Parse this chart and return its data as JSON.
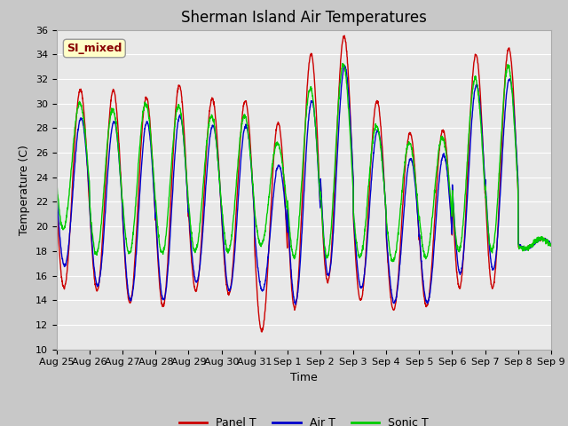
{
  "title": "Sherman Island Air Temperatures",
  "xlabel": "Time",
  "ylabel": "Temperature (C)",
  "ylim": [
    10,
    36
  ],
  "yticks": [
    10,
    12,
    14,
    16,
    18,
    20,
    22,
    24,
    26,
    28,
    30,
    32,
    34,
    36
  ],
  "xtick_labels": [
    "Aug 25",
    "Aug 26",
    "Aug 27",
    "Aug 28",
    "Aug 29",
    "Aug 30",
    "Aug 31",
    "Sep 1",
    "Sep 2",
    "Sep 3",
    "Sep 4",
    "Sep 5",
    "Sep 6",
    "Sep 7",
    "Sep 8",
    "Sep 9"
  ],
  "line_colors": [
    "#cc0000",
    "#0000cc",
    "#00cc00"
  ],
  "line_labels": [
    "Panel T",
    "Air T",
    "Sonic T"
  ],
  "plot_bg_color": "#e8e8e8",
  "fig_bg_color": "#c8c8c8",
  "legend_box_facecolor": "#ffffc8",
  "legend_text_color": "#880000",
  "legend_text": "SI_mixed",
  "title_fontsize": 12,
  "label_fontsize": 9,
  "tick_fontsize": 8,
  "n_days": 15,
  "panel_peaks": [
    31.1,
    31.1,
    30.5,
    31.5,
    30.4,
    30.2,
    28.4,
    34.0,
    35.5,
    30.2,
    27.6,
    27.8,
    34.0,
    34.5,
    19.0
  ],
  "panel_troughs": [
    15.0,
    14.8,
    13.8,
    13.5,
    14.8,
    14.5,
    11.5,
    13.3,
    15.5,
    14.0,
    13.2,
    13.5,
    15.0,
    15.0,
    18.2
  ],
  "air_peaks": [
    28.8,
    28.5,
    28.5,
    29.0,
    28.2,
    28.2,
    25.0,
    30.2,
    33.0,
    27.8,
    25.5,
    25.8,
    31.5,
    32.0,
    19.0
  ],
  "air_troughs": [
    16.8,
    15.2,
    14.0,
    14.0,
    15.5,
    14.8,
    14.8,
    13.8,
    16.0,
    15.0,
    13.8,
    13.8,
    16.2,
    16.5,
    18.2
  ],
  "sonic_peaks": [
    30.0,
    29.5,
    30.0,
    29.8,
    29.0,
    29.0,
    26.8,
    31.2,
    33.2,
    28.2,
    26.8,
    27.2,
    32.0,
    33.0,
    19.0
  ],
  "sonic_troughs": [
    19.8,
    17.8,
    17.8,
    17.8,
    18.0,
    18.0,
    18.5,
    17.5,
    17.5,
    17.5,
    17.2,
    17.5,
    18.0,
    18.0,
    18.2
  ]
}
